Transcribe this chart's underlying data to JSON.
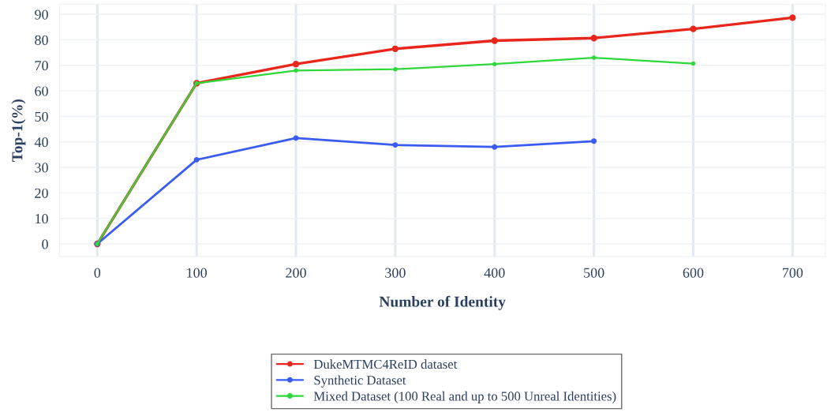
{
  "chart_data": {
    "type": "line",
    "xlabel": "Number of Identity",
    "ylabel": "Top-1(%)",
    "x": [
      0,
      100,
      200,
      300,
      400,
      500,
      600,
      700
    ],
    "series": [
      {
        "name": "DukeMTMC4ReID dataset",
        "color": "#e8261c",
        "values": [
          0,
          63,
          70.5,
          76.5,
          79.7,
          80.7,
          84.3,
          88.7
        ]
      },
      {
        "name": "Synthetic Dataset",
        "color": "#3a5cf0",
        "values": [
          0,
          33,
          41.5,
          38.8,
          38,
          40.3,
          null,
          null
        ]
      },
      {
        "name": "Mixed Dataset (100 Real and up to 500 Unreal Identities)",
        "color": "#2fd83a",
        "values": [
          0,
          63,
          68,
          68.5,
          70.5,
          73,
          70.7,
          null
        ]
      }
    ],
    "xlim": [
      -38,
      733
    ],
    "xticks": [
      0,
      100,
      200,
      300,
      400,
      500,
      600,
      700
    ],
    "ylim": [
      -5,
      94
    ],
    "yticks": [
      0,
      10,
      20,
      30,
      40,
      50,
      60,
      70,
      80,
      90
    ],
    "grid": true,
    "legend": "bottom",
    "marker": "circle",
    "line_style": "solid"
  }
}
